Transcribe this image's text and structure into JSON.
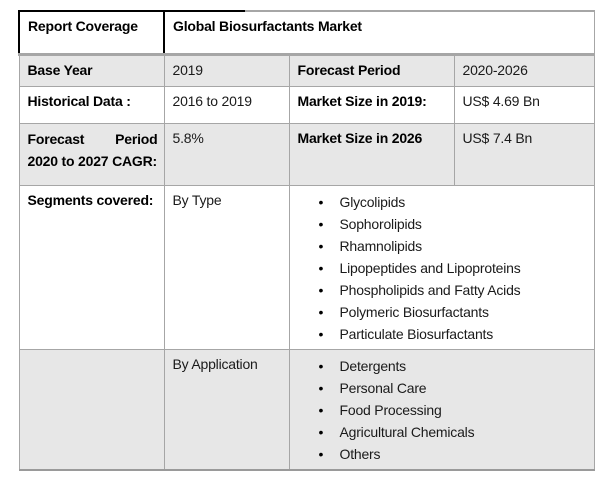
{
  "table": {
    "report_coverage": {
      "label": "Report Coverage",
      "value": "Global Biosurfactants Market"
    },
    "base_year": {
      "label": "Base Year",
      "value": "2019"
    },
    "forecast_period": {
      "label": "Forecast Period",
      "value": "2020-2026"
    },
    "historical_data": {
      "label": "Historical Data :",
      "value": "2016 to 2019"
    },
    "market_size_2019": {
      "label": "Market Size in 2019:",
      "value": "US$ 4.69 Bn"
    },
    "forecast_cagr": {
      "label_word1": "Forecast",
      "label_word2": "Period",
      "label_line2": "2020 to 2027 CAGR:",
      "full_label": "Forecast Period 2020 to 2027 CAGR:",
      "value": "5.8%"
    },
    "market_size_2026": {
      "label": "Market Size in 2026",
      "value": "US$ 7.4 Bn"
    },
    "segments": {
      "label": "Segments covered:",
      "by_type": {
        "name": "By Type",
        "items": [
          "Glycolipids",
          "Sophorolipids",
          "Rhamnolipids",
          "Lipopeptides and Lipoproteins",
          "Phospholipids and Fatty Acids",
          "Polymeric Biosurfactants",
          "Particulate Biosurfactants"
        ]
      },
      "by_application": {
        "name": "By Application",
        "items": [
          "Detergents",
          "Personal Care",
          "Food Processing",
          "Agricultural Chemicals",
          "Others"
        ]
      }
    }
  },
  "icons": {
    "bullet": "•"
  },
  "colors": {
    "shaded_row_bg": "#e7e7e7",
    "grid_border": "#a6a6a6",
    "header_border": "#000000",
    "text": "#1a1a1a",
    "page_bg": "#ffffff"
  }
}
